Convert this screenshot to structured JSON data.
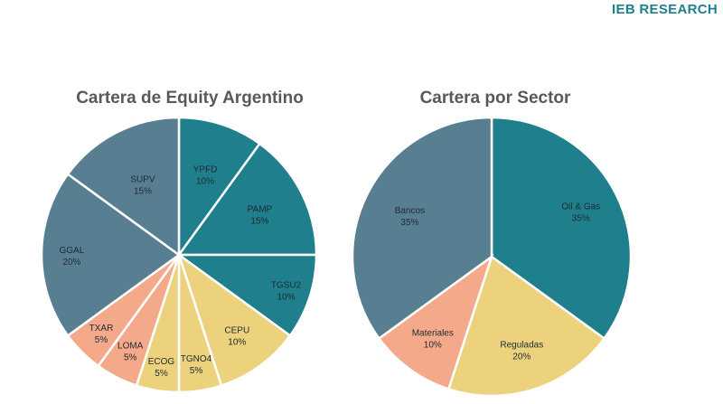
{
  "brand": "IEB RESEARCH",
  "chart_data": [
    {
      "type": "pie",
      "title": "Cartera de Equity Argentino",
      "slices": [
        {
          "label": "YPFD",
          "value": 10,
          "value_label": "10%",
          "color": "#1f7f8c"
        },
        {
          "label": "PAMP",
          "value": 15,
          "value_label": "15%",
          "color": "#1f7f8c"
        },
        {
          "label": "TGSU2",
          "value": 10,
          "value_label": "10%",
          "color": "#1f7f8c"
        },
        {
          "label": "CEPU",
          "value": 10,
          "value_label": "10%",
          "color": "#ecd27d"
        },
        {
          "label": "TGNO4",
          "value": 5,
          "value_label": "5%",
          "color": "#ecd27d"
        },
        {
          "label": "ECOG",
          "value": 5,
          "value_label": "5%",
          "color": "#ecd27d"
        },
        {
          "label": "LOMA",
          "value": 5,
          "value_label": "5%",
          "color": "#f4a98a"
        },
        {
          "label": "TXAR",
          "value": 5,
          "value_label": "5%",
          "color": "#f4a98a"
        },
        {
          "label": "GGAL",
          "value": 20,
          "value_label": "20%",
          "color": "#587f91"
        },
        {
          "label": "SUPV",
          "value": 15,
          "value_label": "15%",
          "color": "#587f91"
        }
      ]
    },
    {
      "type": "pie",
      "title": "Cartera por Sector",
      "slices": [
        {
          "label": "Oil & Gas",
          "value": 35,
          "value_label": "35%",
          "color": "#1f7f8c"
        },
        {
          "label": "Reguladas",
          "value": 20,
          "value_label": "20%",
          "color": "#ecd27d"
        },
        {
          "label": "Materiales",
          "value": 10,
          "value_label": "10%",
          "color": "#f4a98a"
        },
        {
          "label": "Bancos",
          "value": 35,
          "value_label": "35%",
          "color": "#587f91"
        }
      ]
    }
  ]
}
